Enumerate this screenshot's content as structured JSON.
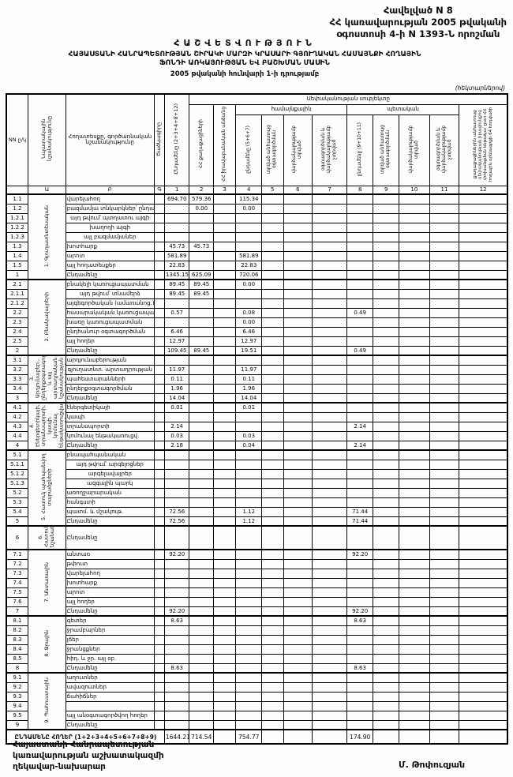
{
  "doc": {
    "appendix": "Հավելված N 8",
    "decree_line1": "ՀՀ կառավարության 2005 թվականի",
    "decree_line2": "օգոստոսի 4-ի N 1393-Ն որոշման",
    "report_title": "ՀԱՇՎԵՏՎՈՒԹՅՈՒՆ",
    "subtitle_line1": "ՀԱՅԱՍՏԱՆԻ ՀԱՆՐԱՊԵՏՈՒԹՅԱՆ ՇԻՐԱԿԻ ՄԱՐԶԻ ԿՐԱՍԱՐԻ ԳՅՈՒՂԱԿԱՆ ՀԱՄԱՅՆՔԻ ՀՈՂԱՅԻՆ",
    "subtitle_line2": "ՖՈՆԴԻ ԱՌԿԱՅՈՒԹՅԱՆ ԵՎ ԲԱՇԽՄԱՆ ՄԱՍԻՆ",
    "as_of": "2005 թվականի հունվարի 1-ի դրությամբ",
    "units_note": "(հեկտարներով)"
  },
  "table": {
    "headers": {
      "nn": "NN ը/կ",
      "purpose": "Նպատակային նշանակությունը",
      "land_type": "Հողատեսքը, գործառնական նշանակությունը",
      "code": "Ծածկագիրը",
      "total": "Ընդամենը (2+3+4+8+12)",
      "ownership_group": "Սեփականության սուբյեկտը",
      "citizens": "ՀՀ քաղաքացիների",
      "legal_entities": "ՀՀ իրավաբանական անձանց",
      "community_group": "համայնքային",
      "state_group": "պետական",
      "community_total": "ընդամենը (5+6+7)",
      "c5": "տրված անհատույց օգտագործման",
      "c6": "վարձակալությամբ տրված",
      "c7": "օգտագործման և վարձակալությամբ չտրված",
      "state_total": "ընդամենը (9+10+11)",
      "c9": "տրված անհատույց օգտագործման",
      "c10": "վարձակալությամբ տրված",
      "c11": "օգտագործման և վարձակալությամբ չտրված",
      "col12": "քաղաքացիներին անհատույց սեփականության իրավունքով փոխանցման ենթակա՝ ըստ ՀՀ հողային օրենսգրքի 64 հոդվածի"
    },
    "col_numbers": [
      "",
      "Ա",
      "Բ",
      "Գ",
      "1",
      "2",
      "3",
      "4",
      "5",
      "6",
      "7",
      "8",
      "9",
      "10",
      "11",
      "12"
    ],
    "value_columns": [
      "1",
      "2",
      "3",
      "4",
      "5",
      "6",
      "7",
      "8",
      "9",
      "10",
      "11",
      "12"
    ],
    "sections": [
      {
        "label": "1. Գյուղատնտեսական",
        "rows": [
          {
            "num": "1.1",
            "label": "վարելահող",
            "v": {
              "1": "694.70",
              "2": "579.36",
              "4": "115.34"
            }
          },
          {
            "num": "1.2",
            "label": "բազմամյա տնկարկներ՝ ընդամենը",
            "v": {
              "2": "0.00",
              "4": "0.00"
            }
          },
          {
            "num": "1.2.1",
            "label": "այդ թվում՝ պտղատու այգի",
            "indent": true,
            "v": {}
          },
          {
            "num": "1.2.2",
            "label": "խաղողի այգի",
            "indent": true,
            "v": {}
          },
          {
            "num": "1.2.3",
            "label": "այլ բազմամյաներ",
            "indent": true,
            "v": {}
          },
          {
            "num": "1.3",
            "label": "խոտհարք",
            "v": {
              "1": "45.73",
              "2": "45.73"
            }
          },
          {
            "num": "1.4",
            "label": "արոտ",
            "v": {
              "1": "581.89",
              "4": "581.89"
            }
          },
          {
            "num": "1.5",
            "label": "այլ հողատեսքեր",
            "v": {
              "1": "22.83",
              "4": "22.83"
            }
          },
          {
            "num": "1",
            "label": "Ընդամենը",
            "v": {
              "1": "1345.15",
              "2": "625.09",
              "4": "720.06"
            }
          }
        ]
      },
      {
        "label": "2. Բնակավայրերի",
        "rows": [
          {
            "num": "2.1",
            "label": "բնակելի կառուցապատման",
            "v": {
              "1": "89.45",
              "2": "89.45",
              "4": "0.00"
            }
          },
          {
            "num": "2.1.1",
            "label": "այդ թվում՝ տնամերձ",
            "indent": true,
            "v": {
              "1": "89.45",
              "2": "89.45"
            }
          },
          {
            "num": "2.1.2",
            "label": "այգեգործական (ամառանոց.)",
            "indent": true,
            "v": {}
          },
          {
            "num": "2.2",
            "label": "հասարակական կառուցապատման",
            "v": {
              "1": "0.57",
              "4": "0.08",
              "8": "0.49"
            }
          },
          {
            "num": "2.3",
            "label": "խառը կառուցապատման",
            "v": {
              "4": "0.00"
            }
          },
          {
            "num": "2.4",
            "label": "ընդհանուր օգտագործման",
            "v": {
              "1": "6.46",
              "4": "6.46"
            }
          },
          {
            "num": "2.5",
            "label": "այլ հողեր",
            "v": {
              "1": "12.97",
              "4": "12.97"
            }
          },
          {
            "num": "2",
            "label": "Ընդամենը",
            "v": {
              "1": "109.45",
              "2": "89.45",
              "4": "19.51",
              "8": "0.49"
            }
          }
        ]
      },
      {
        "label": "3. Արդյունաբեր., ընդերքօգտագործման և այլ արտադրական նշանակության օբյեկտների",
        "rows": [
          {
            "num": "3.1",
            "label": "արդյունաբերության",
            "v": {}
          },
          {
            "num": "3.2",
            "label": "գյուղատնտ. արտադրության",
            "indent": true,
            "v": {
              "1": "11.97",
              "4": "11.97"
            }
          },
          {
            "num": "3.3",
            "label": "պահեստարանների",
            "v": {
              "1": "0.11",
              "4": "0.11"
            }
          },
          {
            "num": "3.4",
            "label": "ընդերքօգտագործման",
            "v": {
              "1": "1.96",
              "4": "1.96"
            }
          },
          {
            "num": "3",
            "label": "Ընդամենը",
            "v": {
              "1": "14.04",
              "4": "14.04"
            }
          }
        ]
      },
      {
        "label": "4. Էներգետիկայի, տրանսպորտի, կապի, կոմունալ ենթակառուցվածքների օբյեկտների",
        "rows": [
          {
            "num": "4.1",
            "label": "էներգետիկայի",
            "v": {
              "1": "0.01",
              "4": "0.01"
            }
          },
          {
            "num": "4.2",
            "label": "կապի",
            "v": {}
          },
          {
            "num": "4.3",
            "label": "տրանսպորտի",
            "v": {
              "1": "2.14",
              "8": "2.14"
            }
          },
          {
            "num": "4.4",
            "label": "կոմունալ ենթակառուցվ.",
            "v": {
              "1": "0.03",
              "4": "0.03"
            }
          },
          {
            "num": "4",
            "label": "Ընդամենը",
            "v": {
              "1": "2.18",
              "4": "0.04",
              "8": "2.14"
            }
          }
        ]
      },
      {
        "label": "5. Հատուկ պահպանվող տարածքների",
        "rows": [
          {
            "num": "5.1",
            "label": "բնապահպանական",
            "v": {}
          },
          {
            "num": "5.1.1",
            "label": "այդ թվում՝ արգելոցներ",
            "indent": true,
            "v": {}
          },
          {
            "num": "5.1.2",
            "label": "արգելավայրեր",
            "indent": true,
            "v": {}
          },
          {
            "num": "5.1.3",
            "label": "ազգային պարկ",
            "indent": true,
            "v": {}
          },
          {
            "num": "5.2",
            "label": "առողջարարական",
            "v": {}
          },
          {
            "num": "5.3",
            "label": "հանգստի",
            "v": {}
          },
          {
            "num": "5.4",
            "label": "պատմ. և մշակութ.",
            "v": {
              "1": "72.56",
              "4": "1.12",
              "8": "71.44"
            }
          },
          {
            "num": "5",
            "label": "Ընդամենը",
            "v": {
              "1": "72.56",
              "4": "1.12",
              "8": "71.44"
            }
          }
        ]
      },
      {
        "label": "6. Հատուկ նշանակության",
        "rows": [
          {
            "num": "6",
            "label": "Ընդամենը",
            "tall": true,
            "v": {}
          }
        ]
      },
      {
        "label": "7. Անտառային",
        "rows": [
          {
            "num": "7.1",
            "label": "անտառ",
            "v": {
              "1": "92.20",
              "8": "92.20"
            }
          },
          {
            "num": "7.2",
            "label": "թփուտ",
            "v": {}
          },
          {
            "num": "7.3",
            "label": "վարելահող",
            "v": {}
          },
          {
            "num": "7.4",
            "label": "խոտհարք",
            "v": {}
          },
          {
            "num": "7.5",
            "label": "արոտ",
            "v": {}
          },
          {
            "num": "7.6",
            "label": "այլ հողեր",
            "v": {}
          },
          {
            "num": "7",
            "label": "Ընդամենը",
            "v": {
              "1": "92.20",
              "8": "92.20"
            }
          }
        ]
      },
      {
        "label": "8. Ջրային",
        "rows": [
          {
            "num": "8.1",
            "label": "գետեր",
            "v": {
              "1": "8.63",
              "8": "8.63"
            }
          },
          {
            "num": "8.2",
            "label": "ջրամբարներ",
            "v": {}
          },
          {
            "num": "8.3",
            "label": "լճեր",
            "v": {}
          },
          {
            "num": "8.4",
            "label": "ջրանցքներ",
            "v": {}
          },
          {
            "num": "8.5",
            "label": "հիդ. և ջր. այլ օբ.",
            "v": {}
          },
          {
            "num": "8",
            "label": "Ընդամենը",
            "v": {
              "1": "8.63",
              "8": "8.63"
            }
          }
        ]
      },
      {
        "label": "9. Պահուստային",
        "rows": [
          {
            "num": "9.1",
            "label": "աղուտներ",
            "v": {}
          },
          {
            "num": "9.2",
            "label": "ավազուտներ",
            "v": {}
          },
          {
            "num": "9.3",
            "label": "ճահիճներ",
            "v": {}
          },
          {
            "num": "9.4",
            "label": "",
            "v": {}
          },
          {
            "num": "9.5",
            "label": "այլ անօգտագործվող հողեր",
            "v": {}
          },
          {
            "num": "9",
            "label": "Ընդամենը",
            "v": {}
          }
        ]
      }
    ],
    "grand_total": {
      "label": "ԸՆԴԱՄԵՆԸ ՀՈՂԵՐ (1+2+3+4+5+6+7+8+9)",
      "v": {
        "1": "1644.21",
        "2": "714.54",
        "4": "754.77",
        "8": "174.90"
      }
    }
  },
  "footer": {
    "line1": "Հայաստանի Հանրապետության",
    "line2": "կառավարության աշխատակազմի",
    "line3": "ղեկավար-նախարար",
    "signature": "Մ. Թոփուզյան"
  }
}
